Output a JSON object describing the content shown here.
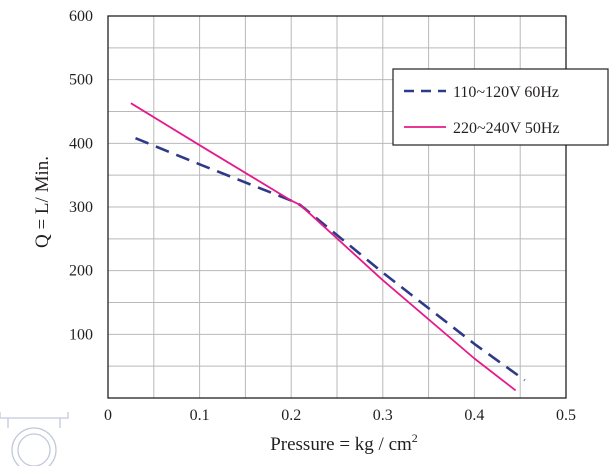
{
  "chart_data": {
    "type": "line",
    "xlabel": "Pressure = kg / cm",
    "xlabel_sup": "2",
    "ylabel": "Q = L/ Min.",
    "xlim": [
      0,
      0.5
    ],
    "ylim": [
      0,
      600
    ],
    "x_grid_step": 0.05,
    "y_grid_step": 50,
    "x_ticks": [
      {
        "value": 0,
        "label": "0"
      },
      {
        "value": 0.1,
        "label": "0.1"
      },
      {
        "value": 0.2,
        "label": "0.2"
      },
      {
        "value": 0.3,
        "label": "0.3"
      },
      {
        "value": 0.4,
        "label": "0.4"
      },
      {
        "value": 0.5,
        "label": "0.5"
      }
    ],
    "y_ticks": [
      {
        "value": 100,
        "label": "100"
      },
      {
        "value": 200,
        "label": "200"
      },
      {
        "value": 300,
        "label": "300"
      },
      {
        "value": 400,
        "label": "400"
      },
      {
        "value": 500,
        "label": "500"
      },
      {
        "value": 600,
        "label": "600"
      }
    ],
    "grid": true,
    "legend_position": "top-right",
    "series": [
      {
        "name": "110~120V 60Hz",
        "color": "#2e3a87",
        "dash": true,
        "x": [
          0.03,
          0.1,
          0.2,
          0.21,
          0.3,
          0.4,
          0.455
        ],
        "y": [
          408,
          367,
          310,
          303,
          197,
          85,
          28
        ]
      },
      {
        "name": "220~240V 50Hz",
        "color": "#e6198a",
        "dash": false,
        "x": [
          0.025,
          0.1,
          0.2,
          0.21,
          0.3,
          0.4,
          0.445
        ],
        "y": [
          463,
          397,
          310,
          303,
          185,
          62,
          12
        ]
      }
    ]
  }
}
